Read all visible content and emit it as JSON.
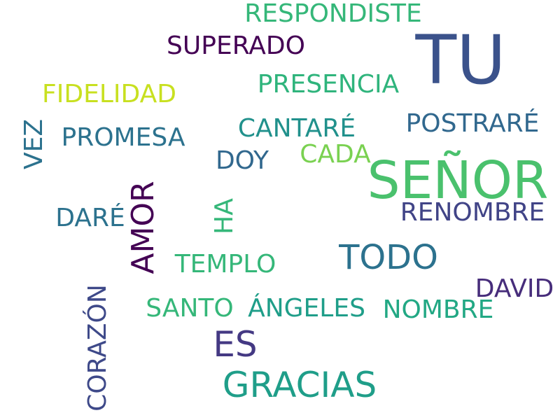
{
  "words": [
    {
      "text": "TU",
      "color": "#3b528b"
    },
    {
      "text": "SEÑOR",
      "color": "#4ac16d"
    },
    {
      "text": "GRACIAS",
      "color": "#1f9e89"
    },
    {
      "text": "TODO",
      "color": "#2c728e"
    },
    {
      "text": "ES",
      "color": "#443983"
    },
    {
      "text": "AMOR",
      "color": "#440154"
    },
    {
      "text": "RESPONDISTE",
      "color": "#35b779"
    },
    {
      "text": "SUPERADO",
      "color": "#440154"
    },
    {
      "text": "PRESENCIA",
      "color": "#2fb47c"
    },
    {
      "text": "FIDELIDAD",
      "color": "#c8e020"
    },
    {
      "text": "PROMESA",
      "color": "#2c728e"
    },
    {
      "text": "CANTARÉ",
      "color": "#21918c"
    },
    {
      "text": "POSTRARÉ",
      "color": "#31688e"
    },
    {
      "text": "DOY",
      "color": "#31688e"
    },
    {
      "text": "CADA",
      "color": "#7ad151"
    },
    {
      "text": "VEZ",
      "color": "#2c728e"
    },
    {
      "text": "DARÉ",
      "color": "#2c728e"
    },
    {
      "text": "HA",
      "color": "#35b779"
    },
    {
      "text": "RENOMBRE",
      "color": "#414487"
    },
    {
      "text": "TEMPLO",
      "color": "#35b779"
    },
    {
      "text": "DAVID",
      "color": "#472d7b"
    },
    {
      "text": "SANTO",
      "color": "#35b779"
    },
    {
      "text": "ÁNGELES",
      "color": "#1f9e89"
    },
    {
      "text": "NOMBRE",
      "color": "#22a884"
    },
    {
      "text": "CORAZÓN",
      "color": "#3e4989"
    }
  ]
}
